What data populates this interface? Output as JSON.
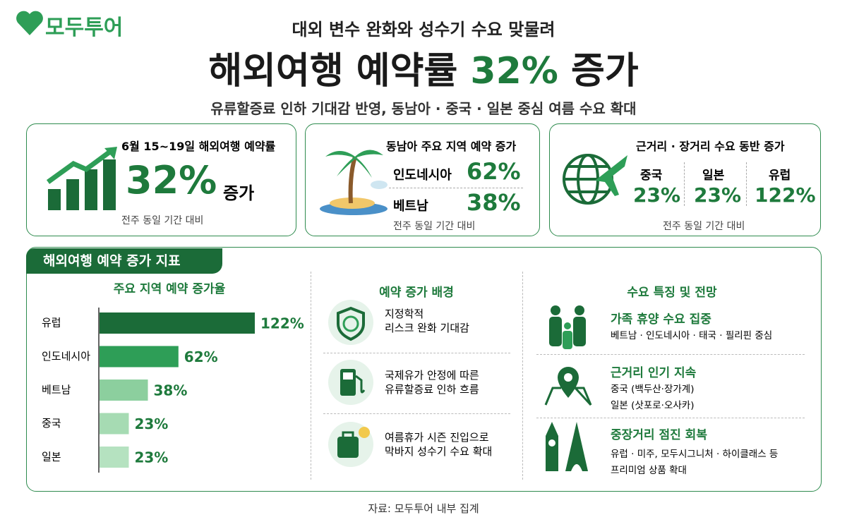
{
  "logo": "모두투어",
  "header": {
    "kicker": "대외 변수 완화와 성수기 수요 맞물려",
    "title_pre": "해외여행 예약률 ",
    "title_highlight": "32%",
    "title_post": " 증가",
    "subtitle": "유류할증료 인하 기대감 반영, 동남아 · 중국 · 일본 중심 여름 수요 확대"
  },
  "cards": [
    {
      "title": "6월 15~19일 해외여행 예약률",
      "value": "32%",
      "suffix": "증가",
      "note": "전주 동일 기간 대비"
    },
    {
      "title": "동남아 주요 지역 예약 증가",
      "rows": [
        {
          "label": "인도네시아",
          "value": "62%"
        },
        {
          "label": "베트남",
          "value": "38%"
        }
      ],
      "note": "전주 동일 기간 대비"
    },
    {
      "title": "근거리 · 장거리 수요 동반 증가",
      "rows": [
        {
          "label": "중국",
          "value": "23%"
        },
        {
          "label": "일본",
          "value": "23%"
        },
        {
          "label": "유럽",
          "value": "122%"
        }
      ],
      "note": "전주 동일 기간 대비"
    }
  ],
  "section_title": "해외여행 예약 증가 지표",
  "chart_data": {
    "type": "bar",
    "orientation": "horizontal",
    "title": "주요 지역 예약 증가율",
    "categories": [
      "유럽",
      "인도네시아",
      "베트남",
      "중국",
      "일본"
    ],
    "values": [
      122,
      62,
      38,
      23,
      23
    ],
    "value_labels": [
      "122%",
      "62%",
      "38%",
      "23%",
      "23%"
    ],
    "colors": [
      "#1b6b38",
      "#2e9e57",
      "#8ccf9e",
      "#a6dbb3",
      "#b5e2c0"
    ]
  },
  "background": {
    "title": "예약 증가 배경",
    "items": [
      [
        "지정학적",
        "리스크 완화 기대감"
      ],
      [
        "국제유가 안정에 따른",
        "유류할증료 인하 흐름"
      ],
      [
        "여름휴가 시즌 진입으로",
        "막바지 성수기 수요 확대"
      ]
    ]
  },
  "outlook": {
    "title": "수요 특징 및 전망",
    "items": [
      {
        "title": "가족 휴양 수요 집중",
        "lines": [
          "베트남 · 인도네시아 · 태국 · 필리핀 중심"
        ]
      },
      {
        "title": "근거리 인기 지속",
        "lines": [
          "중국 (백두산·장가계)",
          "일본 (삿포로·오사카)"
        ]
      },
      {
        "title": "중장거리 점진 회복",
        "lines": [
          "유럽 · 미주, 모두시그니처 · 하이클래스 등",
          "프리미엄 상품 확대"
        ]
      }
    ]
  },
  "source": "자료: 모두투어 내부 집계"
}
